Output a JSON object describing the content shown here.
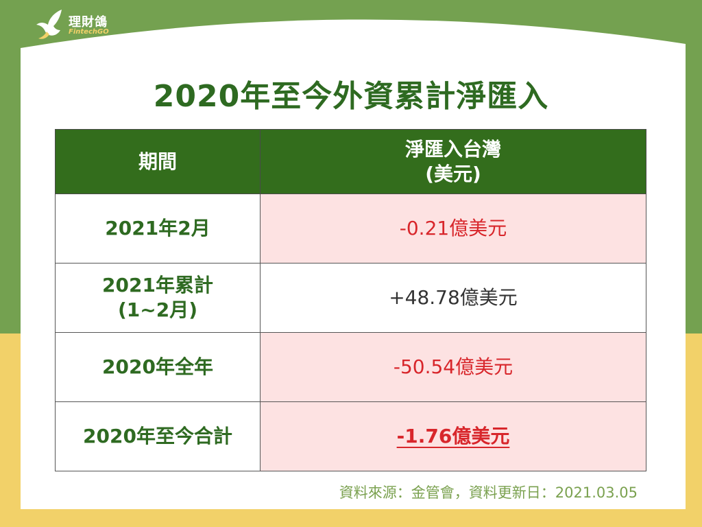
{
  "logo": {
    "name": "理財鴿",
    "sub": "FintechGO",
    "icon": "dove-icon"
  },
  "title": "2020年至今外資累計淨匯入",
  "table": {
    "header_period": "期間",
    "header_value_line1": "淨匯入台灣",
    "header_value_line2": "(美元)",
    "rows": [
      {
        "period_line1": "2021年2月",
        "period_line2": "",
        "value": "-0.21億美元"
      },
      {
        "period_line1": "2021年累計",
        "period_line2": "(1~2月)",
        "value": "+48.78億美元"
      },
      {
        "period_line1": "2020年全年",
        "period_line2": "",
        "value": "-50.54億美元"
      },
      {
        "period_line1": "2020年至今合計",
        "period_line2": "",
        "value": "-1.76億美元"
      }
    ]
  },
  "source": "資料來源：金管會，資料更新日：2021.03.05",
  "colors": {
    "green_band": "#74a150",
    "header_green": "#336d1c",
    "title_green": "#2e6a21",
    "yellow_band": "#f2d169",
    "negative_red": "#d8262b",
    "pink_cell": "#fde2e2"
  }
}
